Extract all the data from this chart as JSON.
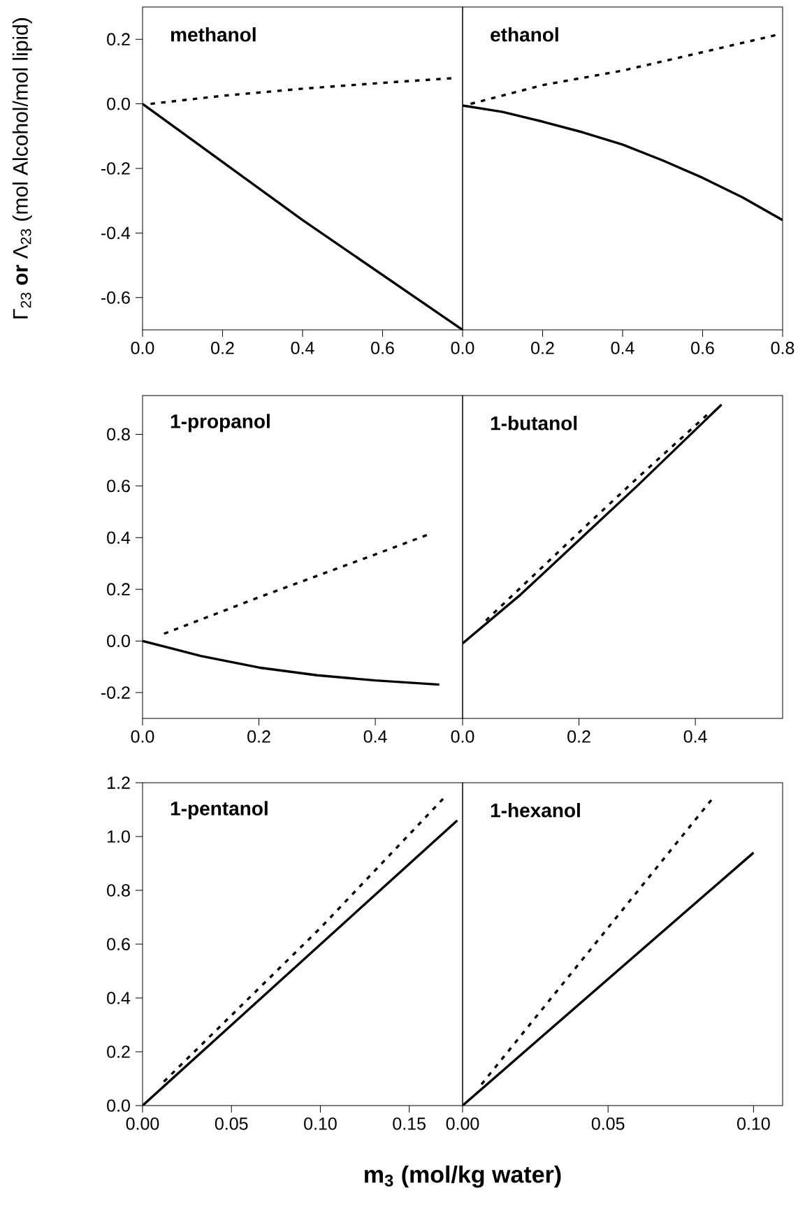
{
  "chart_data": [
    {
      "type": "line",
      "title": "methanol",
      "ylabel": "Γ$_{23}$ **or** Λ$_{23}$  (mol Alcohol/mol lipid)",
      "xlim": [
        0,
        0.8
      ],
      "ylim": [
        -0.7,
        0.3
      ],
      "xticks": [
        {
          "value": 0,
          "label": "0.0"
        },
        {
          "value": 0.2,
          "label": "0.2"
        },
        {
          "value": 0.4,
          "label": "0.4"
        },
        {
          "value": 0.6,
          "label": "0.6"
        }
      ],
      "yticks": [
        {
          "value": -0.6,
          "label": "-0.6"
        },
        {
          "value": -0.4,
          "label": "-0.4"
        },
        {
          "value": -0.2,
          "label": "-0.2"
        },
        {
          "value": 0,
          "label": "0.0"
        },
        {
          "value": 0.2,
          "label": "0.2"
        }
      ],
      "series": [
        {
          "color": "#000000",
          "line_style": "solid",
          "x": [
            0,
            0.2,
            0.4,
            0.6,
            0.8
          ],
          "values": [
            0,
            -0.18,
            -0.36,
            -0.53,
            -0.7
          ]
        },
        {
          "color": "#000000",
          "line_style": "dashed",
          "x": [
            0.02,
            0.2,
            0.4,
            0.6,
            0.78
          ],
          "values": [
            0.0,
            0.025,
            0.047,
            0.065,
            0.08
          ]
        }
      ]
    },
    {
      "type": "line",
      "title": "ethanol",
      "xlim": [
        0,
        0.8
      ],
      "ylim": [
        -0.7,
        0.3
      ],
      "tick_labels": "x",
      "xticks": [
        {
          "value": 0,
          "label": "0.0"
        },
        {
          "value": 0.2,
          "label": "0.2"
        },
        {
          "value": 0.4,
          "label": "0.4"
        },
        {
          "value": 0.6,
          "label": "0.6"
        },
        {
          "value": 0.8,
          "label": "0.8"
        }
      ],
      "series": [
        {
          "color": "#000000",
          "line_style": "solid",
          "x": [
            0,
            0.1,
            0.2,
            0.3,
            0.4,
            0.5,
            0.6,
            0.7,
            0.8
          ],
          "values": [
            -0.005,
            -0.025,
            -0.055,
            -0.088,
            -0.126,
            -0.175,
            -0.229,
            -0.29,
            -0.36
          ]
        },
        {
          "color": "#000000",
          "line_style": "dashed",
          "x": [
            0.02,
            0.2,
            0.4,
            0.6,
            0.79
          ],
          "values": [
            0.0,
            0.058,
            0.103,
            0.16,
            0.215
          ]
        }
      ]
    },
    {
      "type": "line",
      "title": "1-propanol",
      "xlim": [
        0,
        0.55
      ],
      "ylim": [
        -0.3,
        0.95
      ],
      "xticks": [
        {
          "value": 0,
          "label": "0.0"
        },
        {
          "value": 0.2,
          "label": "0.2"
        },
        {
          "value": 0.4,
          "label": "0.4"
        }
      ],
      "yticks": [
        {
          "value": -0.2,
          "label": "-0.2"
        },
        {
          "value": 0,
          "label": "0.0"
        },
        {
          "value": 0.2,
          "label": "0.2"
        },
        {
          "value": 0.4,
          "label": "0.4"
        },
        {
          "value": 0.6,
          "label": "0.6"
        },
        {
          "value": 0.8,
          "label": "0.8"
        }
      ],
      "series": [
        {
          "color": "#000000",
          "line_style": "solid",
          "x": [
            0,
            0.1,
            0.2,
            0.3,
            0.4,
            0.51
          ],
          "values": [
            0,
            -0.058,
            -0.103,
            -0.133,
            -0.153,
            -0.169
          ]
        },
        {
          "color": "#000000",
          "line_style": "dashed",
          "x": [
            0.037,
            0.2,
            0.4,
            0.49
          ],
          "values": [
            0.028,
            0.169,
            0.335,
            0.411
          ]
        }
      ]
    },
    {
      "type": "line",
      "title": "1-butanol",
      "xlim": [
        0,
        0.55
      ],
      "ylim": [
        -0.3,
        0.95
      ],
      "tick_labels": "x",
      "xticks": [
        {
          "value": 0,
          "label": "0.0"
        },
        {
          "value": 0.2,
          "label": "0.2"
        },
        {
          "value": 0.4,
          "label": "0.4"
        }
      ],
      "series": [
        {
          "color": "#000000",
          "line_style": "solid",
          "x": [
            0,
            0.1,
            0.2,
            0.3,
            0.445
          ],
          "values": [
            -0.01,
            0.18,
            0.39,
            0.6,
            0.915
          ]
        },
        {
          "color": "#000000",
          "line_style": "dashed",
          "x": [
            0.04,
            0.2,
            0.3,
            0.42
          ],
          "values": [
            0.079,
            0.42,
            0.63,
            0.875
          ]
        }
      ]
    },
    {
      "type": "line",
      "title": "1-pentanol",
      "xlabel": "m$_{3}$     (mol/kg water)",
      "xlim": [
        0,
        0.18
      ],
      "ylim": [
        0,
        1.2
      ],
      "xticks": [
        {
          "value": 0,
          "label": "0.00"
        },
        {
          "value": 0.05,
          "label": "0.05"
        },
        {
          "value": 0.1,
          "label": "0.10"
        },
        {
          "value": 0.15,
          "label": "0.15"
        }
      ],
      "yticks": [
        {
          "value": 0,
          "label": "0.0"
        },
        {
          "value": 0.2,
          "label": "0.2"
        },
        {
          "value": 0.4,
          "label": "0.4"
        },
        {
          "value": 0.6,
          "label": "0.6"
        },
        {
          "value": 0.8,
          "label": "0.8"
        },
        {
          "value": 1.0,
          "label": "1.0"
        },
        {
          "value": 1.2,
          "label": "1.2"
        }
      ],
      "series": [
        {
          "color": "#000000",
          "line_style": "solid",
          "x": [
            0,
            0.177
          ],
          "values": [
            0,
            1.06
          ]
        },
        {
          "color": "#000000",
          "line_style": "dashed",
          "x": [
            0.012,
            0.1,
            0.169
          ],
          "values": [
            0.089,
            0.66,
            1.14
          ]
        }
      ]
    },
    {
      "type": "line",
      "title": "1-hexanol",
      "xlim": [
        0,
        0.11
      ],
      "ylim": [
        0,
        1.2
      ],
      "tick_labels": "x",
      "xticks": [
        {
          "value": 0,
          "label": "0.00"
        },
        {
          "value": 0.05,
          "label": "0.05"
        },
        {
          "value": 0.1,
          "label": "0.10"
        }
      ],
      "series": [
        {
          "color": "#000000",
          "line_style": "solid",
          "x": [
            0,
            0.1
          ],
          "values": [
            0,
            0.94
          ]
        },
        {
          "color": "#000000",
          "line_style": "dashed",
          "x": [
            0.0065,
            0.0855
          ],
          "values": [
            0.079,
            1.136
          ]
        }
      ]
    }
  ]
}
